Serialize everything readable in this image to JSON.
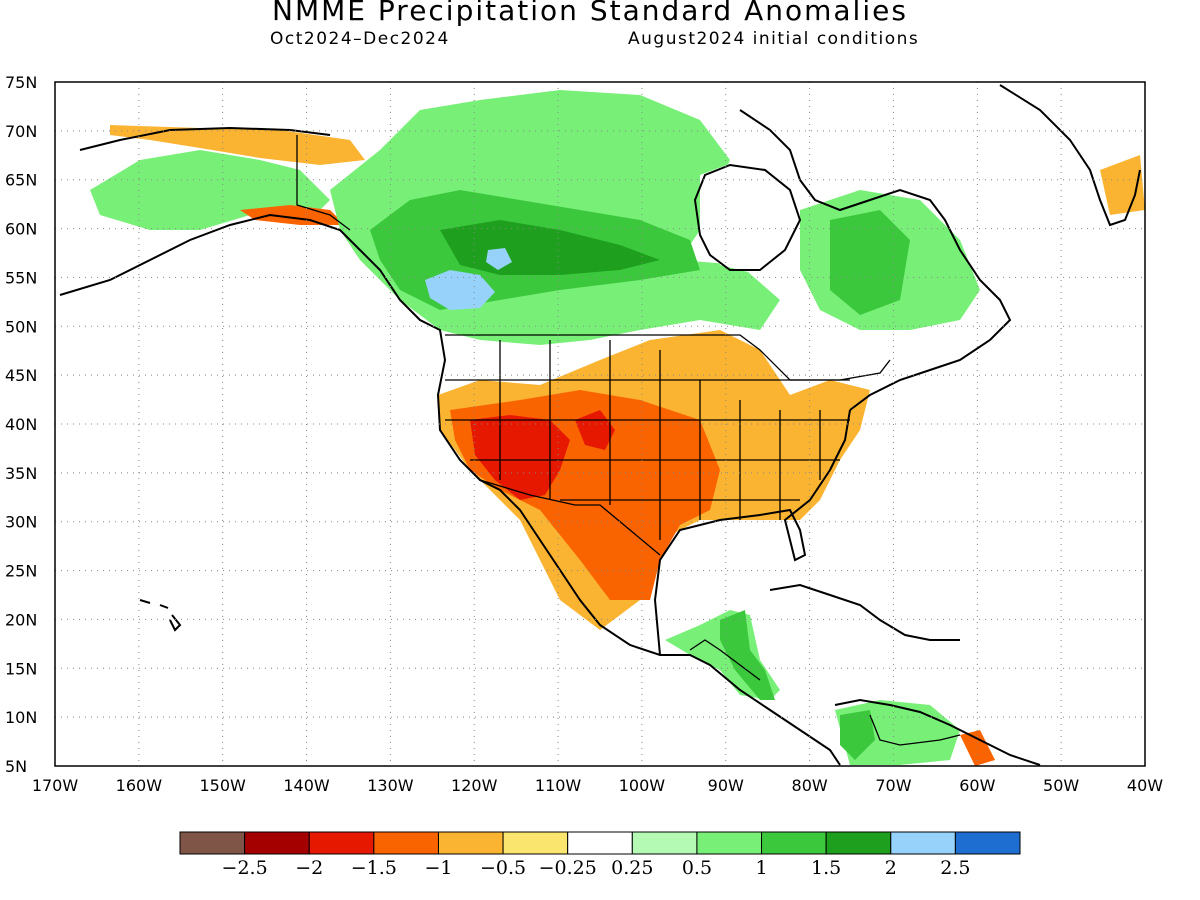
{
  "title": "NMME Precipitation Standard Anomalies",
  "subtitle_left": "Oct2024–Dec2024",
  "subtitle_right": "August2024 initial conditions",
  "map": {
    "projection": "equirectangular",
    "lon_range": [
      -170,
      -40
    ],
    "lat_range": [
      5,
      75
    ],
    "grid": "dotted",
    "lat_labels": [
      "5N",
      "10N",
      "15N",
      "20N",
      "25N",
      "30N",
      "35N",
      "40N",
      "45N",
      "50N",
      "55N",
      "60N",
      "65N",
      "70N",
      "75N"
    ],
    "lon_labels": [
      "170W",
      "160W",
      "150W",
      "140W",
      "130W",
      "120W",
      "110W",
      "100W",
      "90W",
      "80W",
      "70W",
      "60W",
      "50W",
      "40W"
    ],
    "lon_values": [
      -170,
      -160,
      -150,
      -140,
      -130,
      -120,
      -110,
      -100,
      -90,
      -80,
      -70,
      -60,
      -50,
      -40
    ],
    "lat_values": [
      5,
      10,
      15,
      20,
      25,
      30,
      35,
      40,
      45,
      50,
      55,
      60,
      65,
      70,
      75
    ]
  },
  "colorbar": {
    "colors": [
      "#7f5548",
      "#a50000",
      "#e61900",
      "#fa6400",
      "#fab432",
      "#fae66e",
      "#ffffff",
      "#b4fab4",
      "#78f078",
      "#3cc83c",
      "#1ea01e",
      "#96d2fa",
      "#1e6ed2"
    ],
    "tick_labels": [
      "−2.5",
      "−2",
      "−1.5",
      "−1",
      "−0.5",
      "−0.25",
      "0.25",
      "0.5",
      "1",
      "1.5",
      "2",
      "2.5"
    ]
  },
  "anomaly_regions": [
    {
      "name": "southwest-core",
      "value": -2.0,
      "lon": -114,
      "lat": 36
    },
    {
      "name": "southern-plains",
      "value": -1.5,
      "lon": -100,
      "lat": 32
    },
    {
      "name": "southeast",
      "value": -0.5,
      "lon": -85,
      "lat": 34
    },
    {
      "name": "canada-interior",
      "value": 1.5,
      "lon": -110,
      "lat": 58
    },
    {
      "name": "alberta-maximum",
      "value": 2.0,
      "lon": -117,
      "lat": 54
    },
    {
      "name": "quebec-labrador",
      "value": 1.5,
      "lon": -74,
      "lat": 57
    },
    {
      "name": "alaska-north-slope",
      "value": -0.5,
      "lon": -150,
      "lat": 70
    },
    {
      "name": "central-america",
      "value": 1.5,
      "lon": -86,
      "lat": 15
    }
  ]
}
